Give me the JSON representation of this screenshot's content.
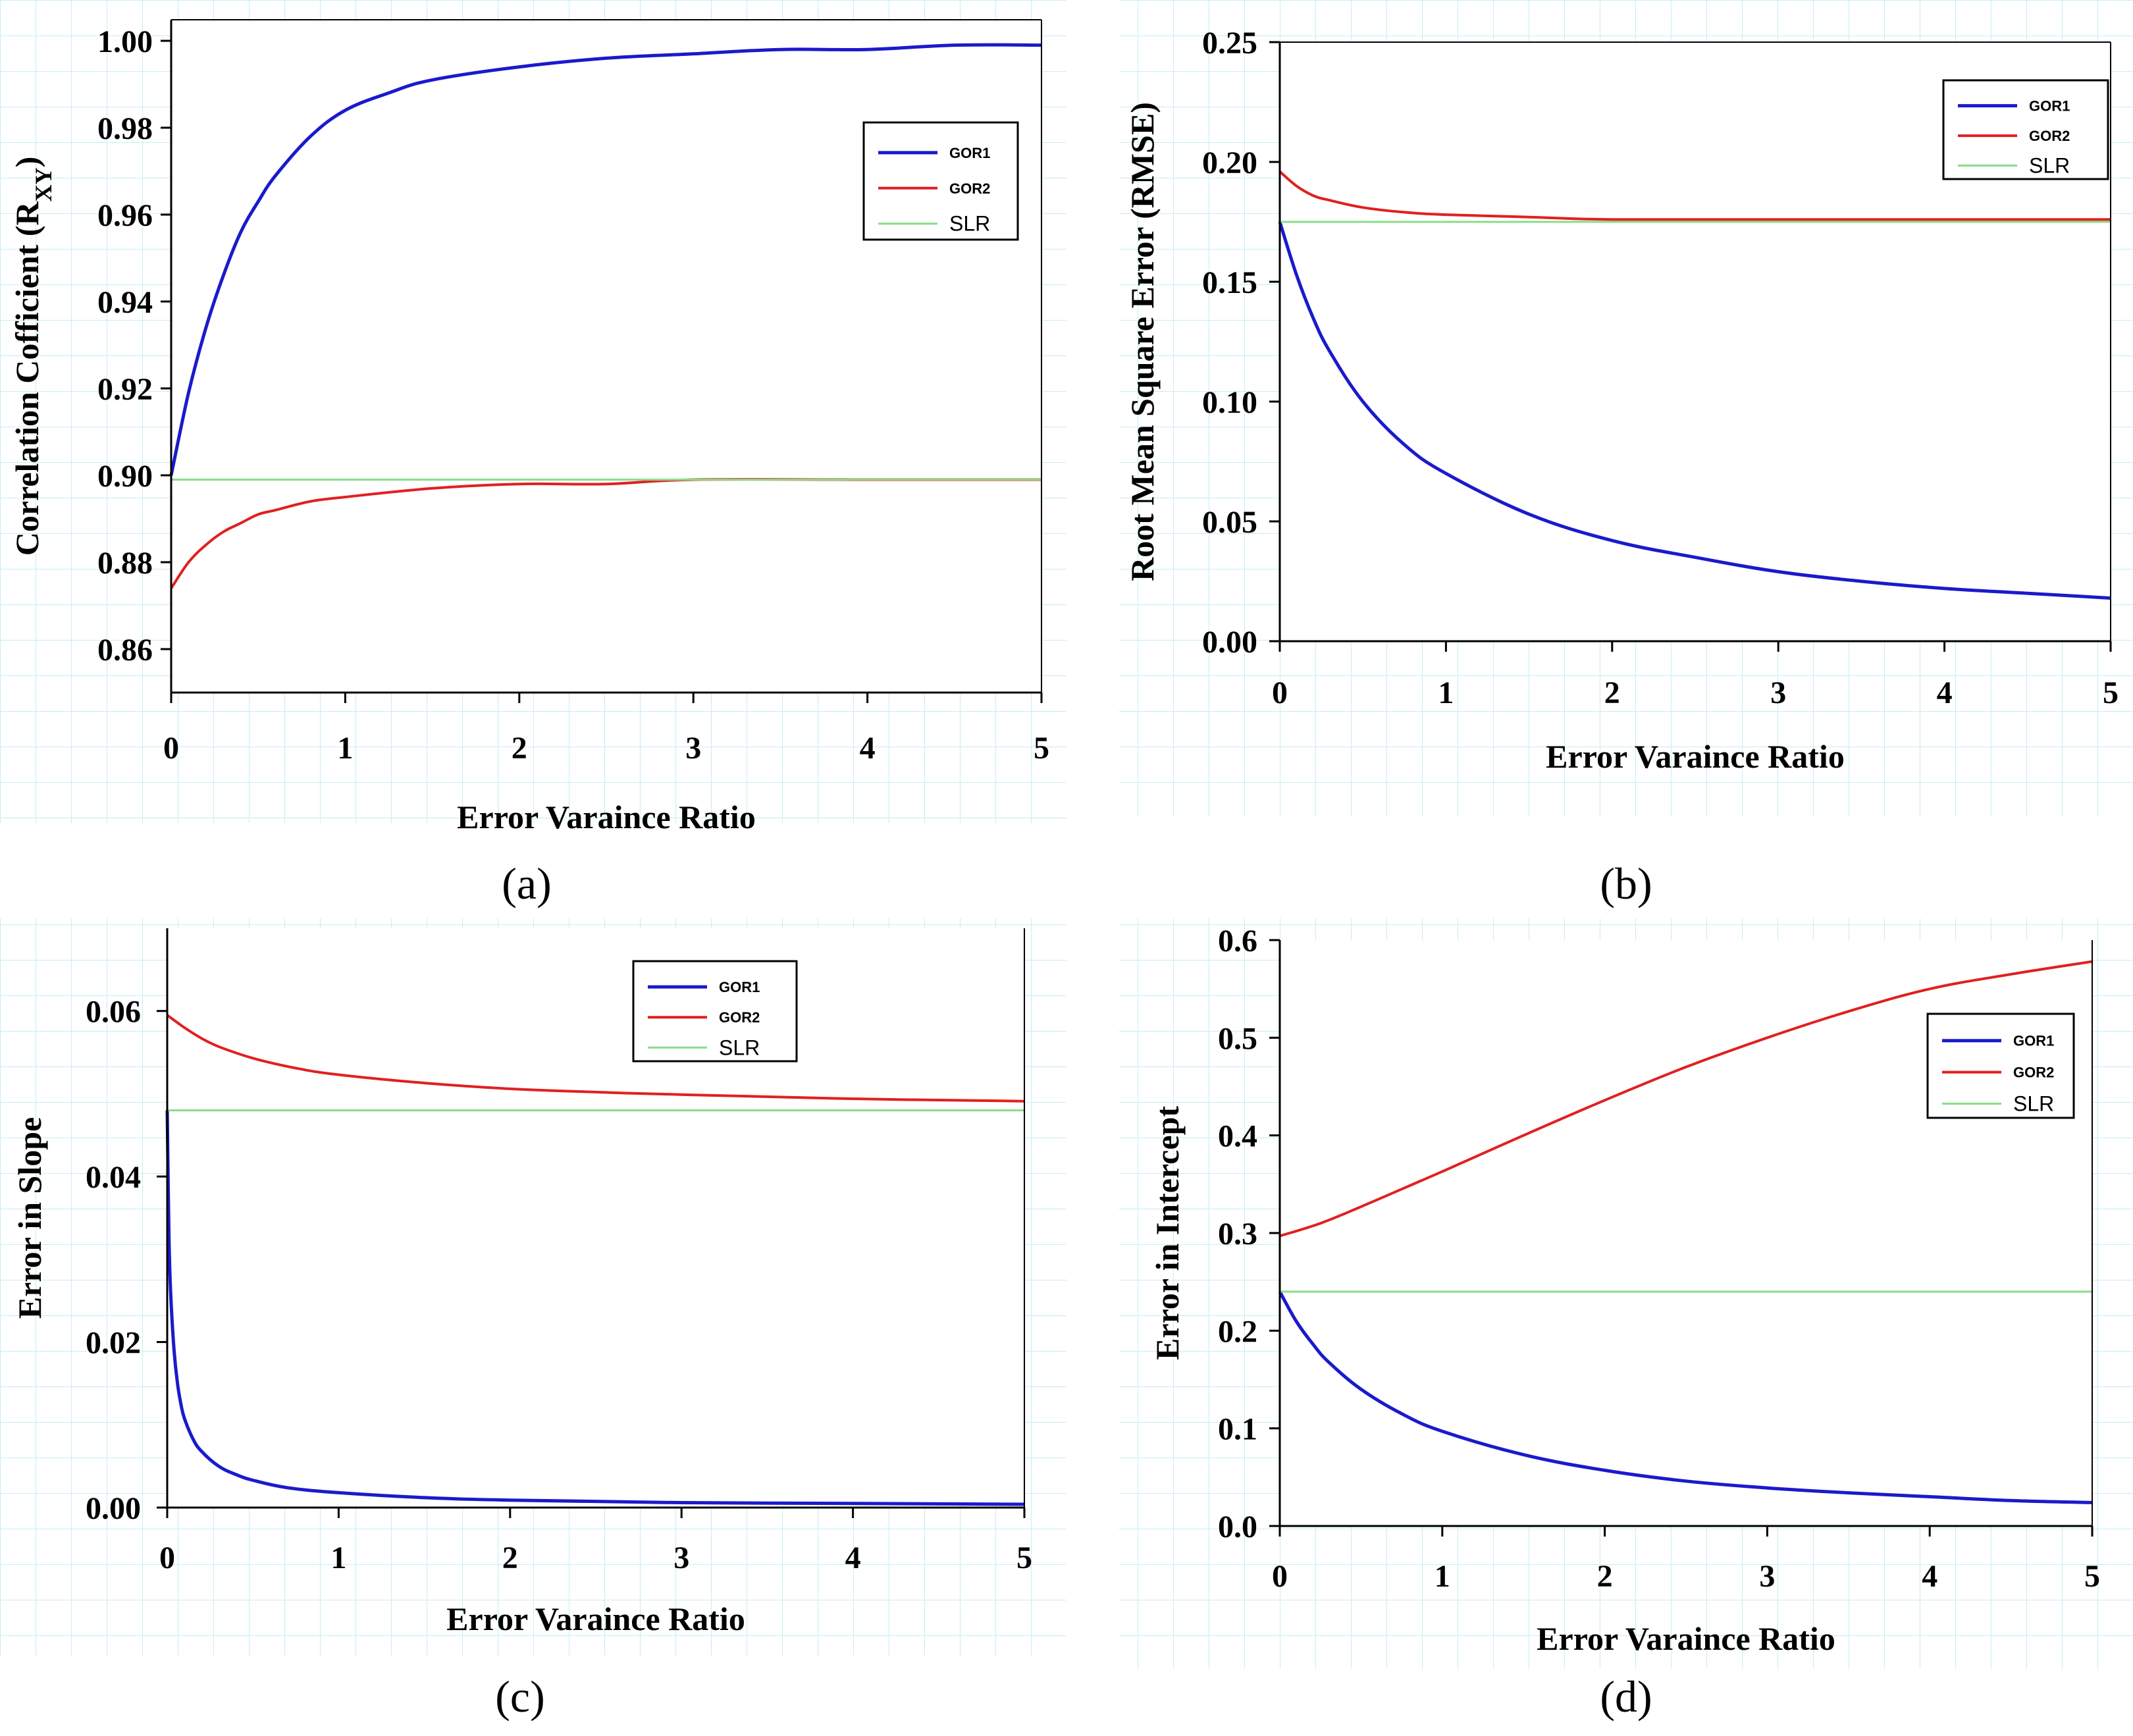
{
  "colors": {
    "GOR1": "#1a1acc",
    "GOR2": "#e02020",
    "SLR": "#88dd88",
    "grid": "#c8ecf4"
  },
  "chart_data": [
    {
      "id": "a",
      "type": "line",
      "panel_label": "(a)",
      "xlabel": "Error Varaince Ratio",
      "ylabel": "Correlation Cofficient (R",
      "ylabel_sub": "XY",
      "ylabel_close": ")",
      "xlim": [
        0,
        5
      ],
      "ylim": [
        0.85,
        1.0
      ],
      "xticks": [
        "0",
        "1",
        "2",
        "3",
        "4",
        "5"
      ],
      "yticks": [
        "0.86",
        "0.88",
        "0.90",
        "0.92",
        "0.94",
        "0.96",
        "0.98",
        "1.00"
      ],
      "legend": [
        "GOR1",
        "GOR2",
        "SLR"
      ],
      "series": [
        {
          "name": "GOR1",
          "x": [
            0,
            0.1,
            0.2,
            0.3,
            0.4,
            0.5,
            0.6,
            0.8,
            1.0,
            1.25,
            1.5,
            2.0,
            2.5,
            3.0,
            3.5,
            4.0,
            4.5,
            5.0
          ],
          "y": [
            0.9,
            0.919,
            0.934,
            0.946,
            0.956,
            0.963,
            0.969,
            0.978,
            0.984,
            0.988,
            0.991,
            0.994,
            0.996,
            0.997,
            0.998,
            0.998,
            0.999,
            0.999
          ]
        },
        {
          "name": "GOR2",
          "x": [
            0,
            0.1,
            0.2,
            0.3,
            0.4,
            0.5,
            0.6,
            0.8,
            1.0,
            1.5,
            2.0,
            2.5,
            3.0,
            4.0,
            5.0
          ],
          "y": [
            0.874,
            0.88,
            0.884,
            0.887,
            0.889,
            0.891,
            0.892,
            0.894,
            0.895,
            0.897,
            0.898,
            0.898,
            0.899,
            0.899,
            0.899
          ]
        },
        {
          "name": "SLR",
          "x": [
            0,
            5
          ],
          "y": [
            0.899,
            0.899
          ]
        }
      ]
    },
    {
      "id": "b",
      "type": "line",
      "panel_label": "(b)",
      "xlabel": "Error Varaince Ratio",
      "ylabel": "Root Mean Square Error (RMSE)",
      "xlim": [
        0,
        5
      ],
      "ylim": [
        0,
        0.25
      ],
      "xticks": [
        "0",
        "1",
        "2",
        "3",
        "4",
        "5"
      ],
      "yticks": [
        "0.00",
        "0.05",
        "0.10",
        "0.15",
        "0.20",
        "0.25"
      ],
      "legend": [
        "GOR1",
        "GOR2",
        "SLR"
      ],
      "series": [
        {
          "name": "GOR1",
          "x": [
            0,
            0.1,
            0.2,
            0.3,
            0.5,
            0.75,
            1.0,
            1.5,
            2.0,
            2.5,
            3.0,
            3.5,
            4.0,
            4.5,
            5.0
          ],
          "y": [
            0.175,
            0.153,
            0.135,
            0.121,
            0.1,
            0.082,
            0.07,
            0.053,
            0.042,
            0.035,
            0.029,
            0.025,
            0.022,
            0.02,
            0.018
          ]
        },
        {
          "name": "GOR2",
          "x": [
            0,
            0.1,
            0.2,
            0.3,
            0.5,
            0.75,
            1.0,
            1.5,
            2.0,
            3.0,
            4.0,
            5.0
          ],
          "y": [
            0.196,
            0.19,
            0.186,
            0.184,
            0.181,
            0.179,
            0.178,
            0.177,
            0.176,
            0.176,
            0.176,
            0.176
          ]
        },
        {
          "name": "SLR",
          "x": [
            0,
            5
          ],
          "y": [
            0.175,
            0.175
          ]
        }
      ]
    },
    {
      "id": "c",
      "type": "line",
      "panel_label": "(c)",
      "xlabel": "Error Varaince Ratio",
      "ylabel": "Error in Slope",
      "xlim": [
        0,
        5
      ],
      "ylim": [
        0,
        0.07
      ],
      "xticks": [
        "0",
        "1",
        "2",
        "3",
        "4",
        "5"
      ],
      "yticks": [
        "0.00",
        "0.02",
        "0.04",
        "0.06"
      ],
      "legend": [
        "GOR1",
        "GOR2",
        "SLR"
      ],
      "series": [
        {
          "name": "GOR1",
          "x": [
            0,
            0.01,
            0.02,
            0.04,
            0.06,
            0.08,
            0.1,
            0.15,
            0.2,
            0.3,
            0.4,
            0.5,
            0.7,
            1.0,
            1.5,
            2.0,
            3.0,
            4.0,
            5.0
          ],
          "y": [
            0.048,
            0.033,
            0.026,
            0.019,
            0.015,
            0.0125,
            0.0108,
            0.0083,
            0.0068,
            0.005,
            0.004,
            0.0033,
            0.0024,
            0.0018,
            0.0012,
            0.0009,
            0.0006,
            0.0005,
            0.0004
          ]
        },
        {
          "name": "GOR2",
          "x": [
            0,
            0.1,
            0.2,
            0.3,
            0.5,
            0.75,
            1.0,
            1.5,
            2.0,
            2.5,
            3.0,
            4.0,
            5.0
          ],
          "y": [
            0.0595,
            0.058,
            0.0567,
            0.0557,
            0.0543,
            0.0531,
            0.0523,
            0.0513,
            0.0506,
            0.0502,
            0.0499,
            0.0494,
            0.0491
          ]
        },
        {
          "name": "SLR",
          "x": [
            0,
            5
          ],
          "y": [
            0.048,
            0.048
          ]
        }
      ]
    },
    {
      "id": "d",
      "type": "line",
      "panel_label": "(d)",
      "xlabel": "Error Varaince Ratio",
      "ylabel": "Error in Intercept",
      "xlim": [
        0,
        5
      ],
      "ylim": [
        0,
        0.6
      ],
      "xticks": [
        "0",
        "1",
        "2",
        "3",
        "4",
        "5"
      ],
      "yticks": [
        "0.0",
        "0.1",
        "0.2",
        "0.3",
        "0.4",
        "0.5",
        "0.6"
      ],
      "legend": [
        "GOR1",
        "GOR2",
        "SLR"
      ],
      "series": [
        {
          "name": "GOR1",
          "x": [
            0,
            0.1,
            0.2,
            0.3,
            0.5,
            0.75,
            1.0,
            1.5,
            2.0,
            2.5,
            3.0,
            3.5,
            4.0,
            4.5,
            5.0
          ],
          "y": [
            0.24,
            0.21,
            0.187,
            0.168,
            0.14,
            0.115,
            0.097,
            0.073,
            0.057,
            0.046,
            0.039,
            0.034,
            0.03,
            0.026,
            0.024
          ]
        },
        {
          "name": "GOR2",
          "x": [
            0,
            0.25,
            0.5,
            0.75,
            1.0,
            1.5,
            2.0,
            2.5,
            3.0,
            3.5,
            4.0,
            4.5,
            5.0
          ],
          "y": [
            0.297,
            0.31,
            0.327,
            0.345,
            0.363,
            0.4,
            0.436,
            0.47,
            0.5,
            0.527,
            0.55,
            0.565,
            0.578
          ]
        },
        {
          "name": "SLR",
          "x": [
            0,
            5
          ],
          "y": [
            0.24,
            0.24
          ]
        }
      ]
    }
  ]
}
